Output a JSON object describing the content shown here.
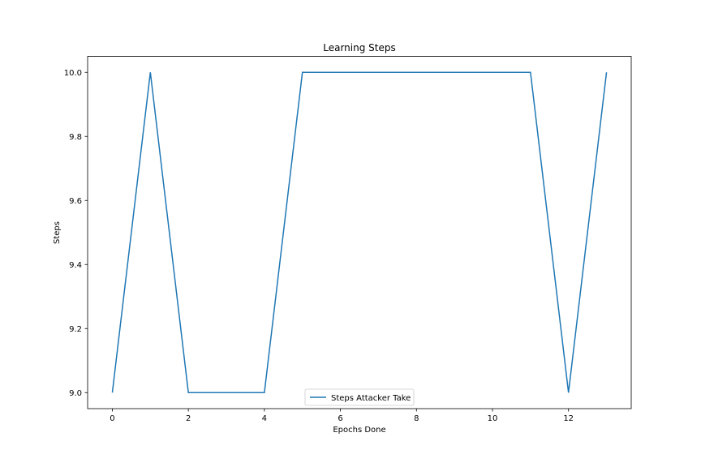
{
  "chart_data": {
    "type": "line",
    "title": "Learning Steps",
    "xlabel": "Epochs Done",
    "ylabel": "Steps",
    "xlim": [
      -0.65,
      13.65
    ],
    "ylim": [
      8.95,
      10.05
    ],
    "x_ticks": [
      0,
      2,
      4,
      6,
      8,
      10,
      12
    ],
    "y_ticks": [
      9.0,
      9.2,
      9.4,
      9.6,
      9.8,
      10.0
    ],
    "x_tick_labels": [
      "0",
      "2",
      "4",
      "6",
      "8",
      "10",
      "12"
    ],
    "y_tick_labels": [
      "9.0",
      "9.2",
      "9.4",
      "9.6",
      "9.8",
      "10.0"
    ],
    "grid": false,
    "legend_position": "lower-center",
    "series": [
      {
        "name": "Steps Attacker Take",
        "color": "#1f77b4",
        "x": [
          0,
          1,
          2,
          3,
          4,
          5,
          6,
          7,
          8,
          9,
          10,
          11,
          12,
          13
        ],
        "y": [
          9,
          10,
          9,
          9,
          9,
          10,
          10,
          10,
          10,
          10,
          10,
          10,
          9,
          10
        ]
      }
    ]
  }
}
